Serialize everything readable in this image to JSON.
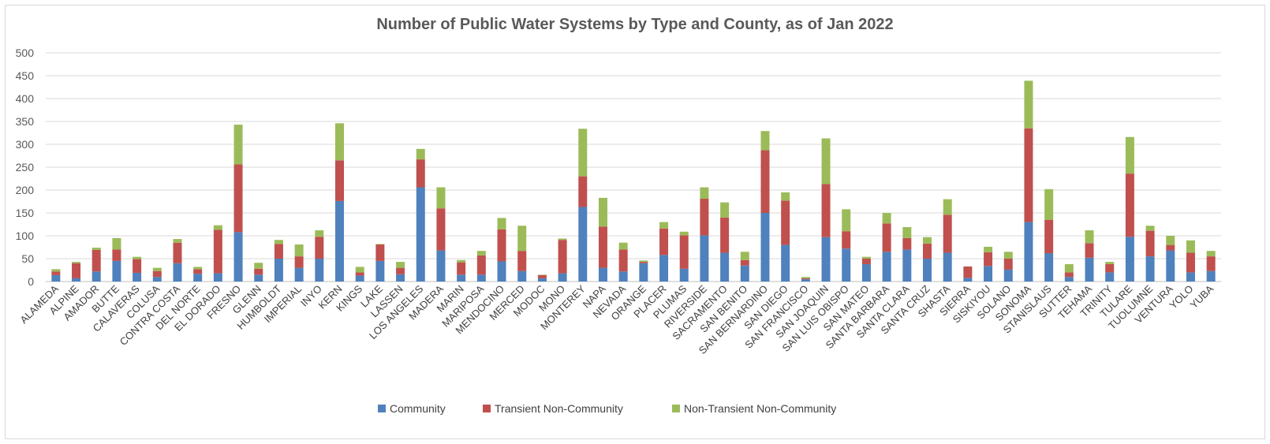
{
  "chart_data": {
    "type": "bar",
    "stacked": true,
    "title": "Number of Public Water Systems by Type and County, as of Jan 2022",
    "xlabel": "",
    "ylabel": "",
    "ylim": [
      0,
      500
    ],
    "yticks": [
      0,
      50,
      100,
      150,
      200,
      250,
      300,
      350,
      400,
      450,
      500
    ],
    "grid": true,
    "legend_position": "bottom",
    "categories": [
      "ALAMEDA",
      "ALPINE",
      "AMADOR",
      "BUTTE",
      "CALAVERAS",
      "COLUSA",
      "CONTRA COSTA",
      "DEL NORTE",
      "EL DORADO",
      "FRESNO",
      "GLENN",
      "HUMBOLDT",
      "IMPERIAL",
      "INYO",
      "KERN",
      "KINGS",
      "LAKE",
      "LASSEN",
      "LOS ANGELES",
      "MADERA",
      "MARIN",
      "MARIPOSA",
      "MENDOCINO",
      "MERCED",
      "MODOC",
      "MONO",
      "MONTEREY",
      "NAPA",
      "NEVADA",
      "ORANGE",
      "PLACER",
      "PLUMAS",
      "RIVERSIDE",
      "SACRAMENTO",
      "SAN BENITO",
      "SAN BERNARDINO",
      "SAN DIEGO",
      "SAN FRANCISCO",
      "SAN JOAQUIN",
      "SAN LUIS OBISPO",
      "SAN MATEO",
      "SANTA BARBARA",
      "SANTA CLARA",
      "SANTA CRUZ",
      "SHASTA",
      "SIERRA",
      "SISKIYOU",
      "SOLANO",
      "SONOMA",
      "STANISLAUS",
      "SUTTER",
      "TEHAMA",
      "TRINITY",
      "TULARE",
      "TUOLUMNE",
      "VENTURA",
      "YOLO",
      "YUBA"
    ],
    "series": [
      {
        "name": "Community",
        "color": "#4f81bd",
        "values": [
          14,
          7,
          22,
          45,
          19,
          10,
          40,
          17,
          18,
          108,
          15,
          50,
          30,
          50,
          176,
          13,
          45,
          16,
          206,
          68,
          15,
          15,
          44,
          23,
          7,
          18,
          163,
          30,
          22,
          40,
          58,
          28,
          101,
          63,
          35,
          150,
          80,
          5,
          97,
          72,
          38,
          65,
          70,
          50,
          63,
          8,
          34,
          26,
          130,
          62,
          10,
          52,
          20,
          98,
          55,
          68,
          20,
          23
        ]
      },
      {
        "name": "Transient Non-Community",
        "color": "#c0504d",
        "values": [
          8,
          33,
          47,
          25,
          30,
          13,
          45,
          10,
          95,
          148,
          13,
          32,
          25,
          48,
          89,
          7,
          36,
          14,
          61,
          92,
          27,
          42,
          70,
          44,
          7,
          73,
          67,
          90,
          48,
          3,
          58,
          73,
          80,
          77,
          12,
          137,
          97,
          2,
          116,
          38,
          12,
          62,
          25,
          33,
          83,
          25,
          30,
          24,
          205,
          73,
          10,
          32,
          18,
          138,
          56,
          12,
          43,
          32
        ]
      },
      {
        "name": "Non-Transient Non-Community",
        "color": "#9bbb59",
        "values": [
          5,
          3,
          5,
          25,
          5,
          7,
          8,
          5,
          10,
          87,
          13,
          9,
          26,
          14,
          81,
          12,
          1,
          13,
          23,
          46,
          5,
          10,
          25,
          55,
          1,
          3,
          104,
          63,
          15,
          3,
          14,
          8,
          25,
          33,
          18,
          42,
          18,
          3,
          100,
          48,
          4,
          23,
          24,
          14,
          34,
          0,
          12,
          15,
          104,
          67,
          18,
          28,
          5,
          80,
          11,
          20,
          27,
          12
        ]
      }
    ]
  }
}
